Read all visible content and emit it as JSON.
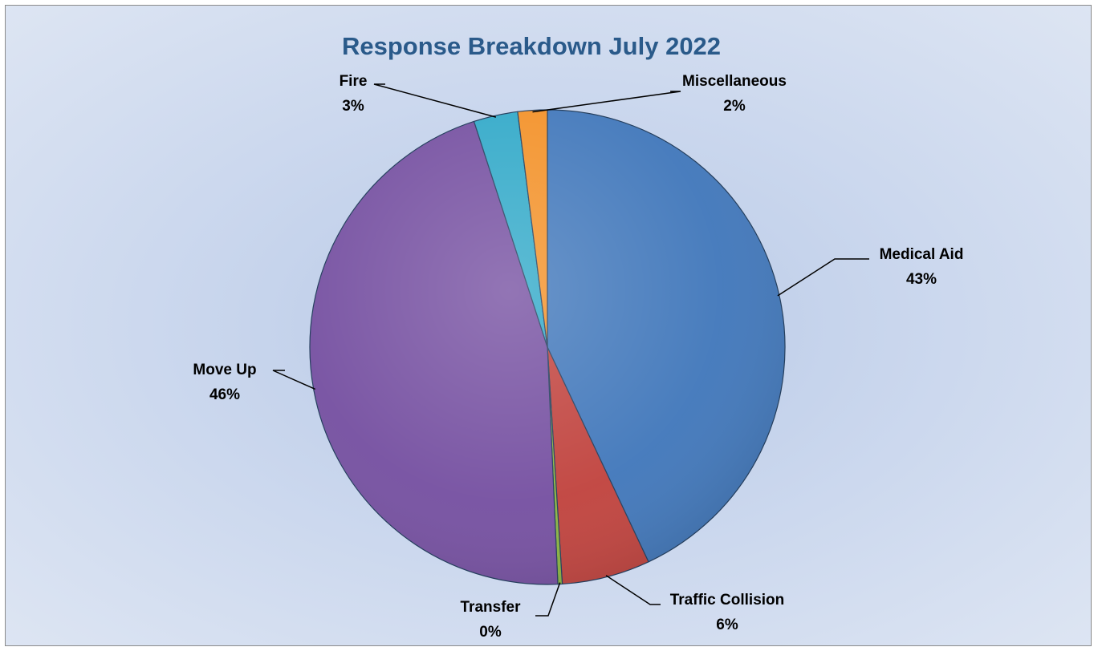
{
  "chart_data": {
    "type": "pie",
    "title": "Response Breakdown July 2022",
    "slices": [
      {
        "name": "Medical Aid",
        "value": 43,
        "pct_label": "43%",
        "color": "#3f76ba"
      },
      {
        "name": "Traffic Collision",
        "value": 6,
        "pct_label": "6%",
        "color": "#c0413c"
      },
      {
        "name": "Transfer",
        "value": 0.3,
        "pct_label": "0%",
        "color": "#8ab43f"
      },
      {
        "name": "Move Up",
        "value": 45.7,
        "pct_label": "46%",
        "color": "#744ea0"
      },
      {
        "name": "Fire",
        "value": 3,
        "pct_label": "3%",
        "color": "#2fa8c8"
      },
      {
        "name": "Miscellaneous",
        "value": 2,
        "pct_label": "2%",
        "color": "#f39026"
      }
    ],
    "start_angle": "12 o'clock",
    "direction": "clockwise",
    "legend": "none"
  }
}
